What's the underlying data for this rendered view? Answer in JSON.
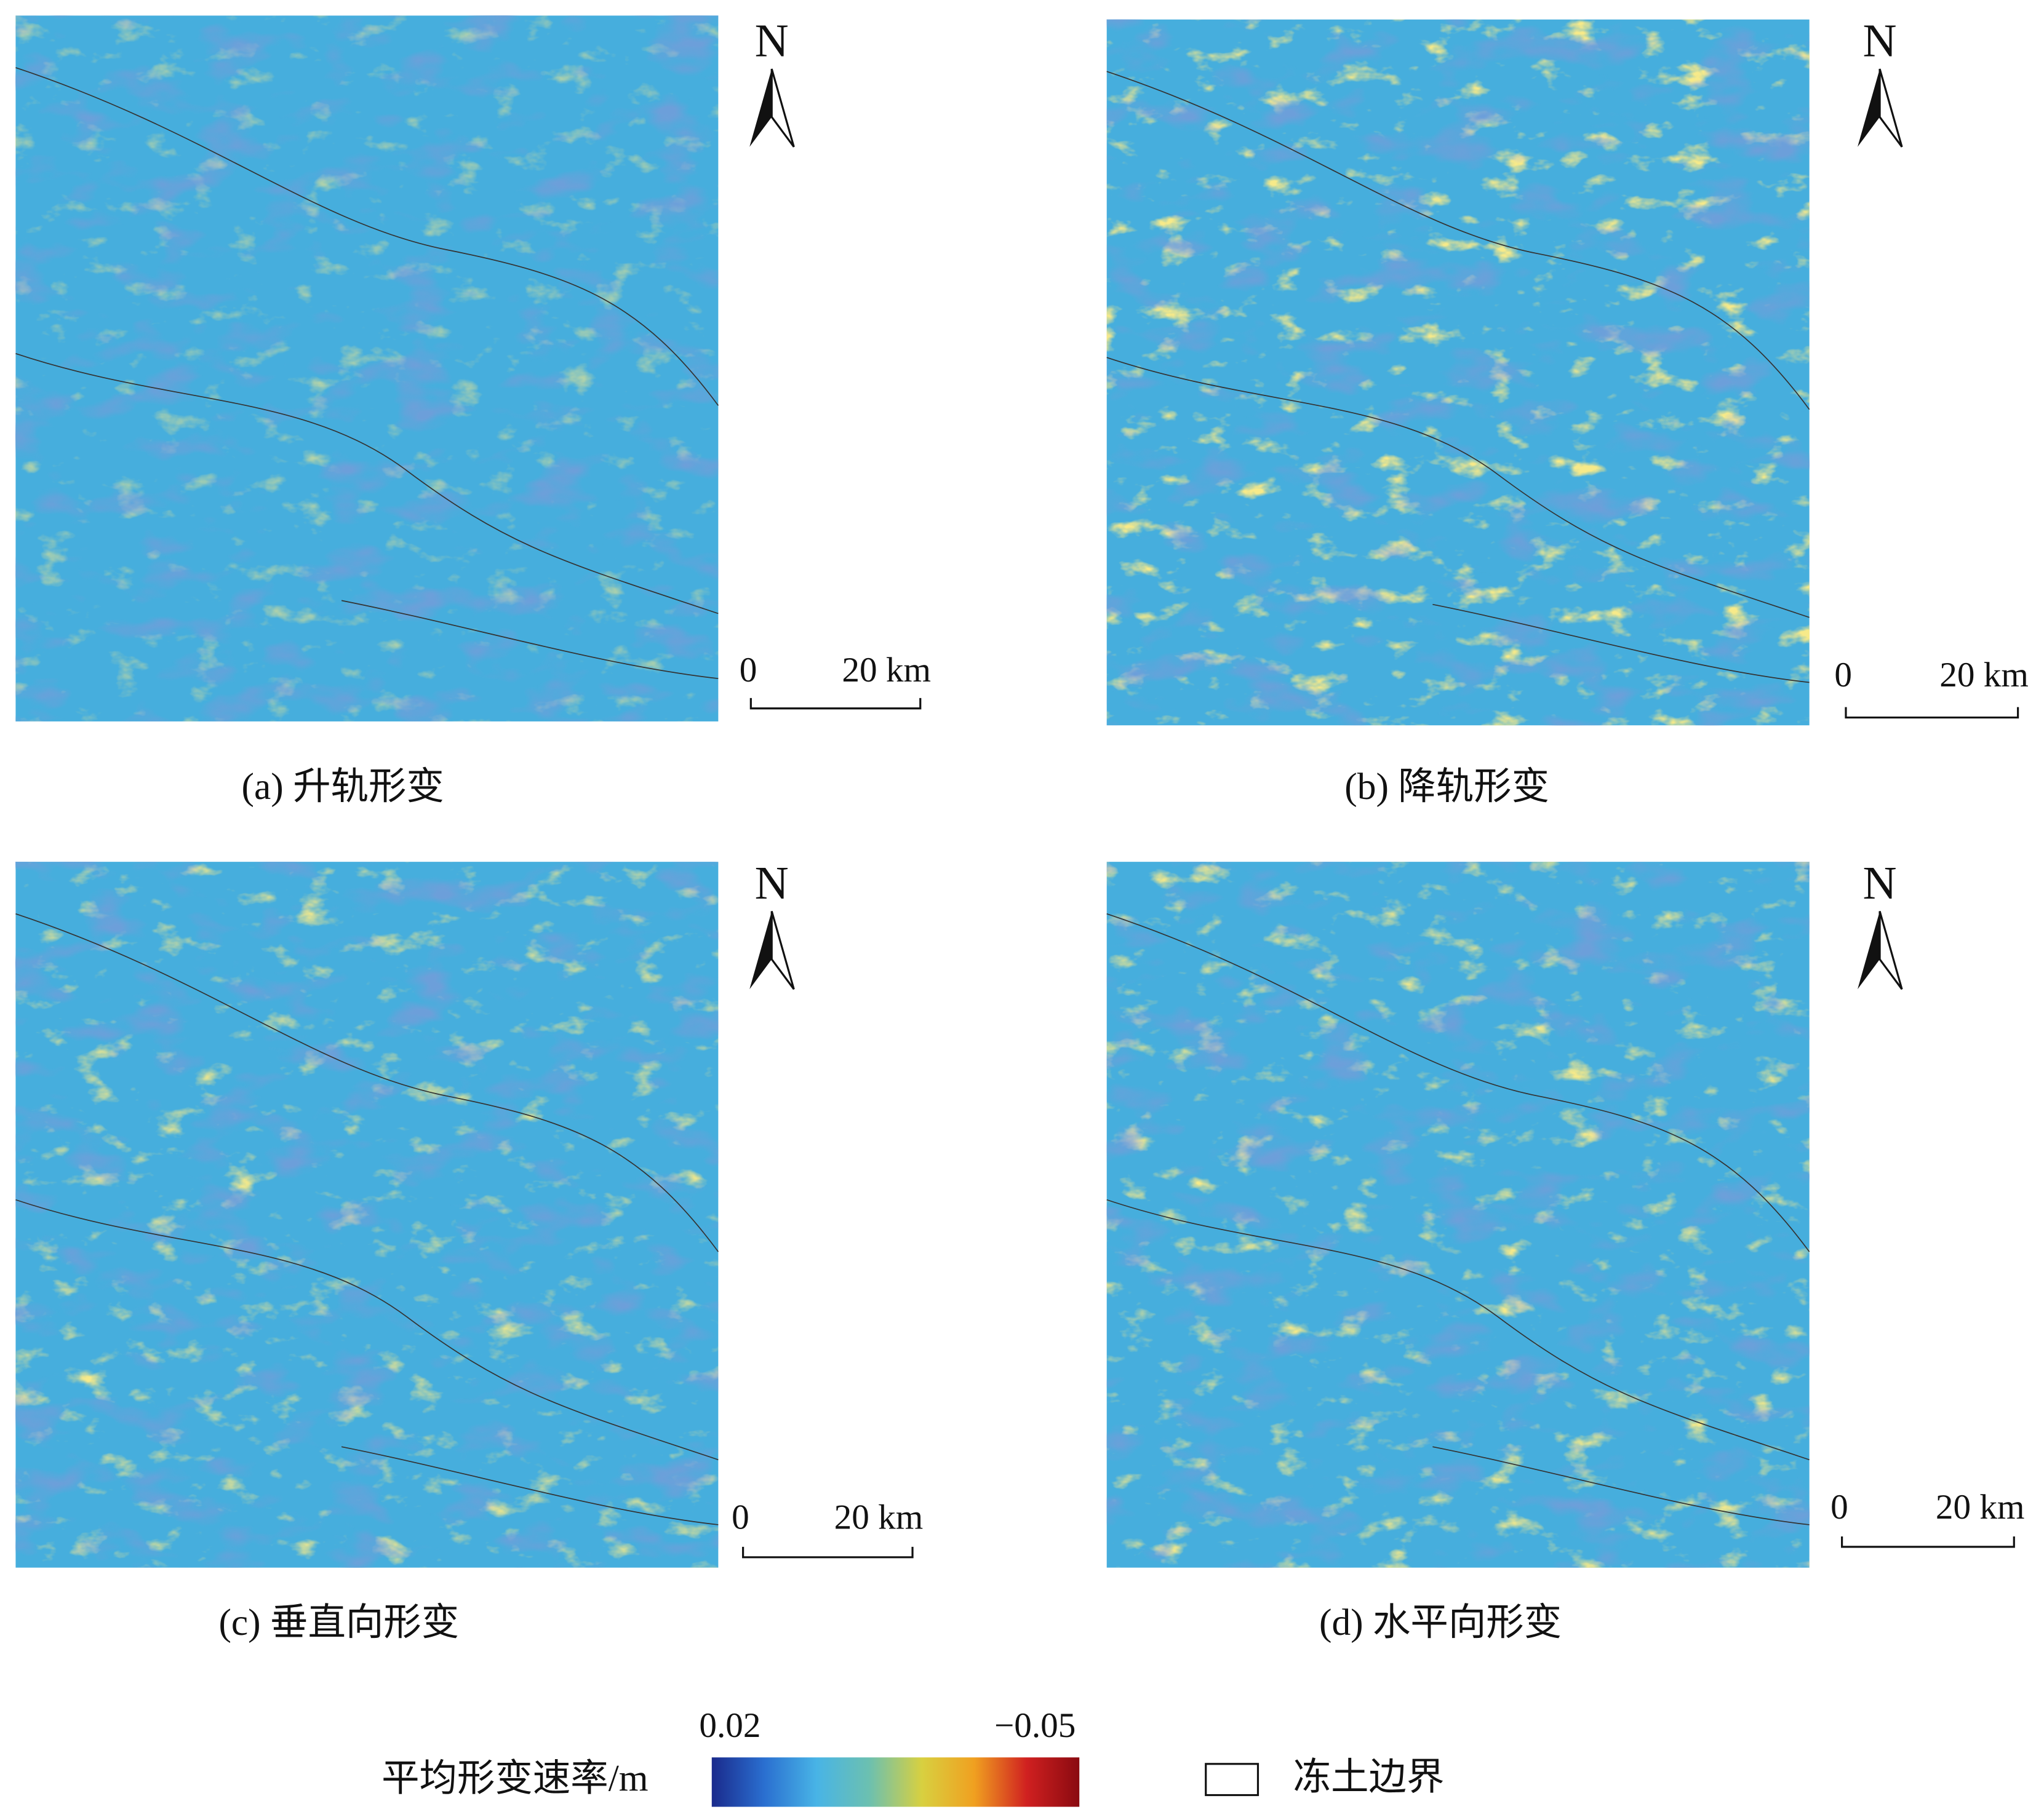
{
  "panels": [
    {
      "caption": "(a) 升轨形变",
      "north": "N",
      "scale_start": "0",
      "scale_end": "20 km"
    },
    {
      "caption": "(b) 降轨形变",
      "north": "N",
      "scale_start": "0",
      "scale_end": "20 km"
    },
    {
      "caption": "(c) 垂直向形变",
      "north": "N",
      "scale_start": "0",
      "scale_end": "20 km"
    },
    {
      "caption": "(d) 水平向形变",
      "north": "N",
      "scale_start": "0",
      "scale_end": "20 km"
    }
  ],
  "colorbar": {
    "title": "平均形变速率/m",
    "ticks": [
      {
        "value": 0.02,
        "label": "0.02"
      },
      {
        "value": -0.05,
        "label": "−0.05"
      }
    ],
    "colors": [
      "#1a2a8c",
      "#2a6fd0",
      "#48b4e6",
      "#6cc0b0",
      "#d8d040",
      "#f0a020",
      "#d02020",
      "#8a0a10"
    ]
  },
  "legend": {
    "label": "冻土边界"
  }
}
